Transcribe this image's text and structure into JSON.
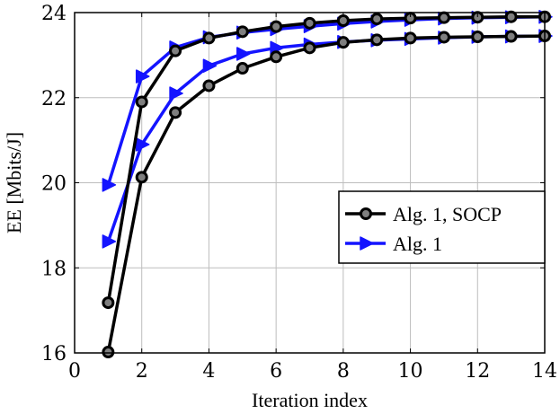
{
  "chart_data": {
    "type": "line",
    "xlabel": "Iteration index",
    "ylabel": "EE [Mbits/J]",
    "xlim": [
      0,
      14
    ],
    "ylim": [
      16,
      24
    ],
    "xticks": [
      0,
      2,
      4,
      6,
      8,
      10,
      12,
      14
    ],
    "yticks": [
      16,
      18,
      20,
      22,
      24
    ],
    "grid": true,
    "legend_position": "center-right",
    "series": [
      {
        "name": "Alg. 1, SOCP",
        "color": "#000000",
        "marker": "circle",
        "x": [
          1,
          2,
          3,
          4,
          5,
          6,
          7,
          8,
          9,
          10,
          11,
          12,
          13,
          14
        ],
        "values": [
          17.18,
          21.9,
          23.1,
          23.4,
          23.55,
          23.67,
          23.75,
          23.81,
          23.85,
          23.87,
          23.88,
          23.89,
          23.9,
          23.9
        ]
      },
      {
        "name": "Alg. 1, SOCP",
        "color": "#000000",
        "marker": "circle",
        "x": [
          1,
          2,
          3,
          4,
          5,
          6,
          7,
          8,
          9,
          10,
          11,
          12,
          13,
          14
        ],
        "values": [
          16.02,
          20.13,
          21.65,
          22.28,
          22.69,
          22.96,
          23.17,
          23.3,
          23.36,
          23.4,
          23.42,
          23.43,
          23.44,
          23.45
        ]
      },
      {
        "name": "Alg. 1",
        "color": "#1414ff",
        "marker": "triangle-right",
        "x": [
          1,
          2,
          3,
          4,
          5,
          6,
          7,
          8,
          9,
          10,
          11,
          12,
          13,
          14
        ],
        "values": [
          19.95,
          22.5,
          23.18,
          23.42,
          23.53,
          23.61,
          23.68,
          23.74,
          23.79,
          23.83,
          23.86,
          23.88,
          23.89,
          23.9
        ]
      },
      {
        "name": "Alg. 1",
        "color": "#1414ff",
        "marker": "triangle-right",
        "x": [
          1,
          2,
          3,
          4,
          5,
          6,
          7,
          8,
          9,
          10,
          11,
          12,
          13,
          14
        ],
        "values": [
          18.62,
          20.9,
          22.1,
          22.75,
          23.03,
          23.17,
          23.25,
          23.31,
          23.35,
          23.38,
          23.41,
          23.43,
          23.44,
          23.45
        ]
      }
    ],
    "legend": [
      {
        "label": "Alg. 1, SOCP",
        "color": "#000000",
        "marker": "circle"
      },
      {
        "label": "Alg. 1",
        "color": "#1414ff",
        "marker": "triangle-right"
      }
    ]
  }
}
